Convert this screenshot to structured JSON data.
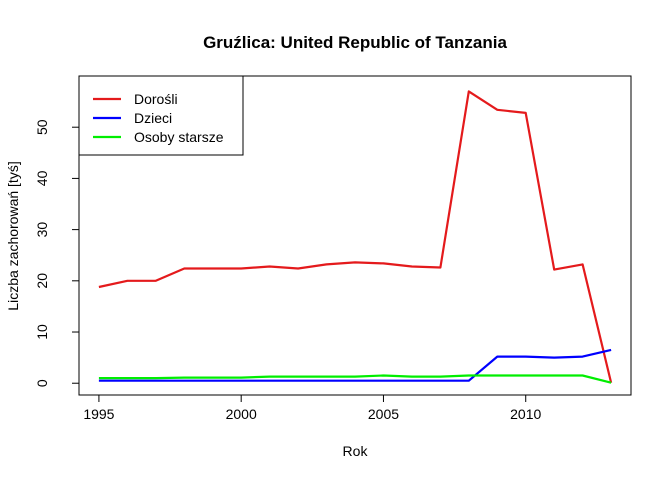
{
  "chart_data": {
    "type": "line",
    "title": "Gruźlica: United Republic of Tanzania",
    "xlabel": "Rok",
    "ylabel": "Liczba zachorowań [tyś]",
    "xlim": [
      1994.3,
      2013.7
    ],
    "ylim": [
      -2.3,
      60.0
    ],
    "x_ticks": [
      1995,
      2000,
      2005,
      2010
    ],
    "y_ticks": [
      0,
      10,
      20,
      30,
      40,
      50
    ],
    "grid": false,
    "legend_position": "top-left",
    "x": [
      1995,
      1996,
      1997,
      1998,
      1999,
      2000,
      2001,
      2002,
      2003,
      2004,
      2005,
      2006,
      2007,
      2008,
      2009,
      2010,
      2011,
      2012,
      2013
    ],
    "series": [
      {
        "name": "Dorośli",
        "color": "#e41a1c",
        "values": [
          18.8,
          20.0,
          20.0,
          22.4,
          22.4,
          22.4,
          22.8,
          22.4,
          23.2,
          23.6,
          23.4,
          22.8,
          22.6,
          57.0,
          53.4,
          52.8,
          22.2,
          23.2,
          0.1
        ]
      },
      {
        "name": "Dzieci",
        "color": "#0000ff",
        "values": [
          0.5,
          0.5,
          0.5,
          0.5,
          0.5,
          0.5,
          0.5,
          0.5,
          0.5,
          0.5,
          0.5,
          0.5,
          0.5,
          0.5,
          5.2,
          5.2,
          5.0,
          5.2,
          6.5
        ]
      },
      {
        "name": "Osoby starsze",
        "color": "#00ee00",
        "values": [
          1.0,
          1.0,
          1.0,
          1.1,
          1.1,
          1.1,
          1.3,
          1.3,
          1.3,
          1.3,
          1.5,
          1.3,
          1.3,
          1.5,
          1.5,
          1.5,
          1.5,
          1.5,
          0.1
        ]
      }
    ]
  }
}
